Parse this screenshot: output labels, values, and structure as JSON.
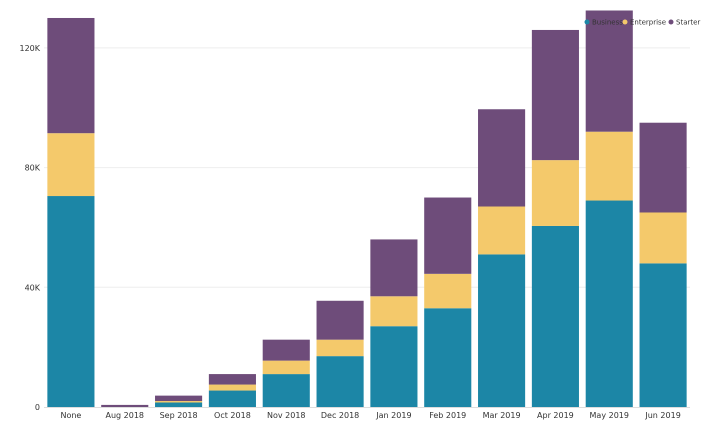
{
  "chart_data": {
    "type": "bar",
    "stacked": true,
    "categories": [
      "None",
      "Aug 2018",
      "Sep 2018",
      "Oct 2018",
      "Nov 2018",
      "Dec 2018",
      "Jan 2019",
      "Feb 2019",
      "Mar 2019",
      "Apr 2019",
      "May 2019",
      "Jun 2019"
    ],
    "series": [
      {
        "name": "Business",
        "color": "#1c86a6",
        "values": [
          70500,
          0,
          1500,
          5500,
          11000,
          17000,
          27000,
          33000,
          51000,
          60500,
          69000,
          48000
        ]
      },
      {
        "name": "Enterprise",
        "color": "#f4c96b",
        "values": [
          21000,
          0,
          500,
          2000,
          4500,
          5500,
          10000,
          11500,
          16000,
          22000,
          23000,
          17000
        ]
      },
      {
        "name": "Starter",
        "color": "#6e4c7a",
        "values": [
          38500,
          700,
          1800,
          3500,
          7000,
          13000,
          19000,
          25500,
          32500,
          43500,
          40500,
          30000
        ]
      }
    ],
    "title": "",
    "xlabel": "",
    "ylabel": "",
    "ylim": [
      0,
      132000
    ],
    "yticks": [
      0,
      40000,
      80000,
      120000
    ],
    "ytick_labels": [
      "0",
      "40K",
      "80K",
      "120K"
    ],
    "grid": true,
    "legend_position": "top-right"
  }
}
